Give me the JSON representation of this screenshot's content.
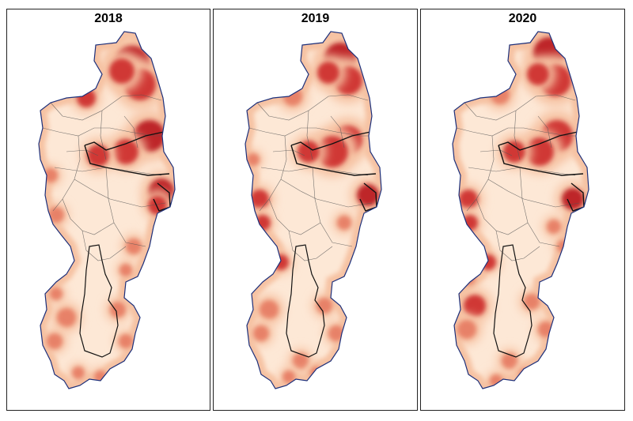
{
  "panels": [
    {
      "year": "2018"
    },
    {
      "year": "2019"
    },
    {
      "year": "2020"
    }
  ],
  "colors": {
    "base": "#fde8d6",
    "light": "#f6c2a3",
    "medium": "#e67a62",
    "dark": "#cc2a2a",
    "darkest": "#b8141c",
    "outline": "#1c2f7a",
    "district_line": "#555555"
  },
  "legend_present": false
}
